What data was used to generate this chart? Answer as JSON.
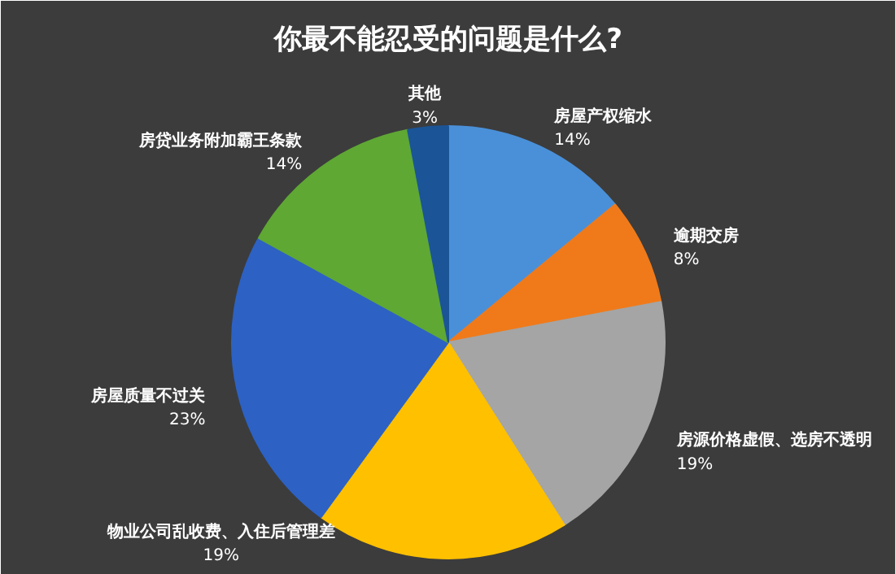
{
  "chart_data": {
    "type": "pie",
    "title": "你最不能忍受的问题是什么?",
    "categories": [
      "房屋产权缩水",
      "逾期交房",
      "房源价格虚假、选房不透明",
      "物业公司乱收费、入住后管理差",
      "房屋质量不过关",
      "房贷业务附加霸王条款",
      "其他"
    ],
    "values": [
      14,
      8,
      19,
      19,
      23,
      14,
      3
    ],
    "colors": [
      "#4a90d9",
      "#f07a1a",
      "#a5a5a5",
      "#ffc000",
      "#2d62c4",
      "#5fa834",
      "#1b5597"
    ],
    "value_labels": [
      "14%",
      "8%",
      "19%",
      "19%",
      "23%",
      "14%",
      "3%"
    ]
  }
}
